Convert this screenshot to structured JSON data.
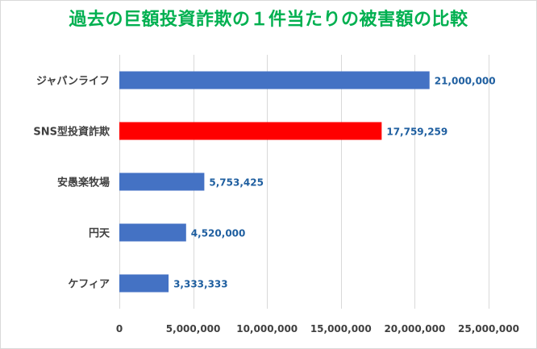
{
  "chart_data": {
    "type": "bar",
    "orientation": "horizontal",
    "title": "過去の巨額投資詐欺の１件当たりの被害額の比較",
    "categories": [
      "ジャパンライフ",
      "SNS型投資詐欺",
      "安愚楽牧場",
      "円天",
      "ケフィア"
    ],
    "values": [
      21000000,
      17759259,
      5753425,
      4520000,
      3333333
    ],
    "value_labels": [
      "21,000,000",
      "17,759,259",
      "5,753,425",
      "4,520,000",
      "3,333,333"
    ],
    "bar_colors": [
      "#4472c4",
      "#ff0000",
      "#4472c4",
      "#4472c4",
      "#4472c4"
    ],
    "value_label_color": "#1f5fa0",
    "xlim": [
      0,
      25000000
    ],
    "xticks": [
      0,
      5000000,
      10000000,
      15000000,
      20000000,
      25000000
    ],
    "xtick_labels": [
      "0",
      "5,000,000",
      "10,000,000",
      "15,000,000",
      "20,000,000",
      "25,000,000"
    ],
    "grid": true,
    "legend": "none",
    "title_color": "#00b050"
  }
}
